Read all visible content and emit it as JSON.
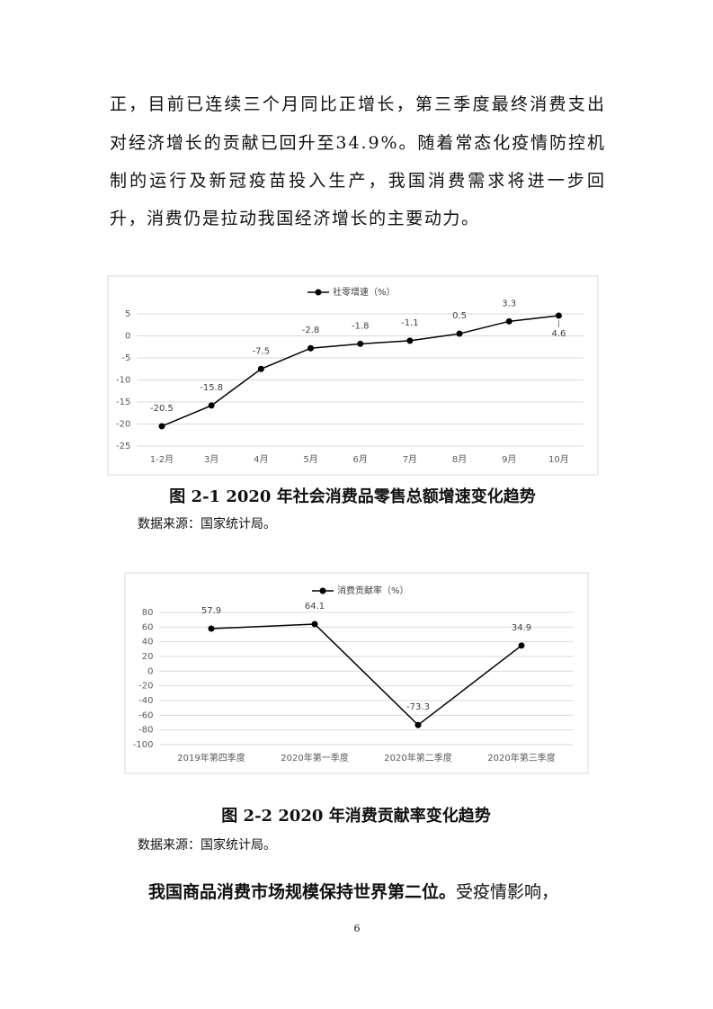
{
  "paragraph": [
    "正，目前已连续三个月同比正增长，第三季度最终消费支出",
    "对经济增长的贡献已回升至34.9%。随着常态化疫情防控机",
    "制的运行及新冠疫苗投入生产，我国消费需求将进一步回",
    "升，消费仍是拉动我国经济增长的主要动力。"
  ],
  "chart_data": [
    {
      "type": "line",
      "series": [
        {
          "name": "社零增速（%）",
          "color": "#000000",
          "values": [
            -20.5,
            -15.8,
            -7.5,
            -2.8,
            -1.8,
            -1.1,
            0.5,
            3.3,
            4.6
          ]
        }
      ],
      "categories": [
        "1-2月",
        "3月",
        "4月",
        "5月",
        "6月",
        "7月",
        "8月",
        "9月",
        "10月"
      ],
      "ylim": [
        -25,
        5
      ],
      "yticks": [
        -25,
        -20,
        -15,
        -10,
        -5,
        0,
        5
      ],
      "grid": true,
      "legend": "top"
    },
    {
      "type": "line",
      "series": [
        {
          "name": "消费贡献率（%）",
          "color": "#000000",
          "values": [
            57.9,
            64.1,
            -73.3,
            34.9
          ]
        }
      ],
      "categories": [
        "2019年第四季度",
        "2020年第一季度",
        "2020年第二季度",
        "2020年第三季度"
      ],
      "ylim": [
        -100,
        80
      ],
      "yticks": [
        -100,
        -80,
        -60,
        -40,
        -20,
        0,
        20,
        40,
        60,
        80
      ],
      "grid": true,
      "legend": "top"
    }
  ],
  "captions": [
    "图 2-1 2020 年社会消费品零售总额增速变化趋势",
    "图 2-2 2020 年消费贡献率变化趋势"
  ],
  "sources": [
    "数据来源：国家统计局。",
    "数据来源：国家统计局。"
  ],
  "closing": {
    "bold": "我国商品消费市场规模保持世界第二位。",
    "normal": "受疫情影响，"
  },
  "page_number": "6"
}
